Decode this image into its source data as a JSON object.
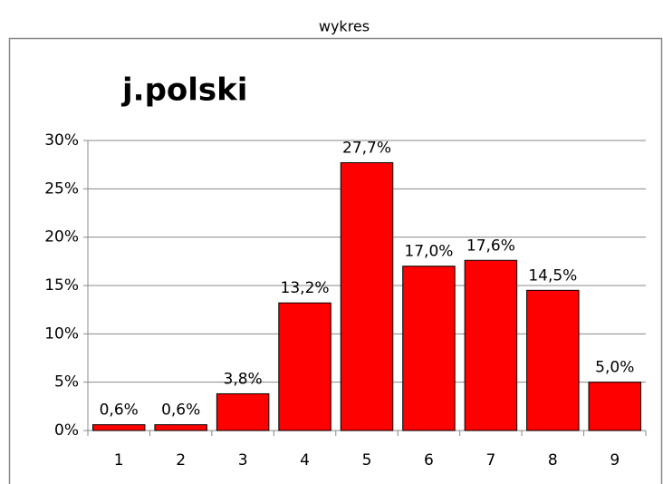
{
  "caption": "wykres",
  "chart_data": {
    "type": "bar",
    "title": "j.polski",
    "categories": [
      "1",
      "2",
      "3",
      "4",
      "5",
      "6",
      "7",
      "8",
      "9"
    ],
    "values": [
      0.6,
      0.6,
      3.8,
      13.2,
      27.7,
      17.0,
      17.6,
      14.5,
      5.0
    ],
    "value_labels": [
      "0,6%",
      "0,6%",
      "3,8%",
      "13,2%",
      "27,7%",
      "17,0%",
      "17,6%",
      "14,5%",
      "5,0%"
    ],
    "color": "#ff0000",
    "ylim": [
      0,
      30
    ],
    "yticks": [
      {
        "value": 0,
        "label": "0%"
      },
      {
        "value": 5,
        "label": "5%"
      },
      {
        "value": 10,
        "label": "10%"
      },
      {
        "value": 15,
        "label": "15%"
      },
      {
        "value": 20,
        "label": "20%"
      },
      {
        "value": 25,
        "label": "25%"
      },
      {
        "value": 30,
        "label": "30%"
      }
    ],
    "grid": true
  }
}
